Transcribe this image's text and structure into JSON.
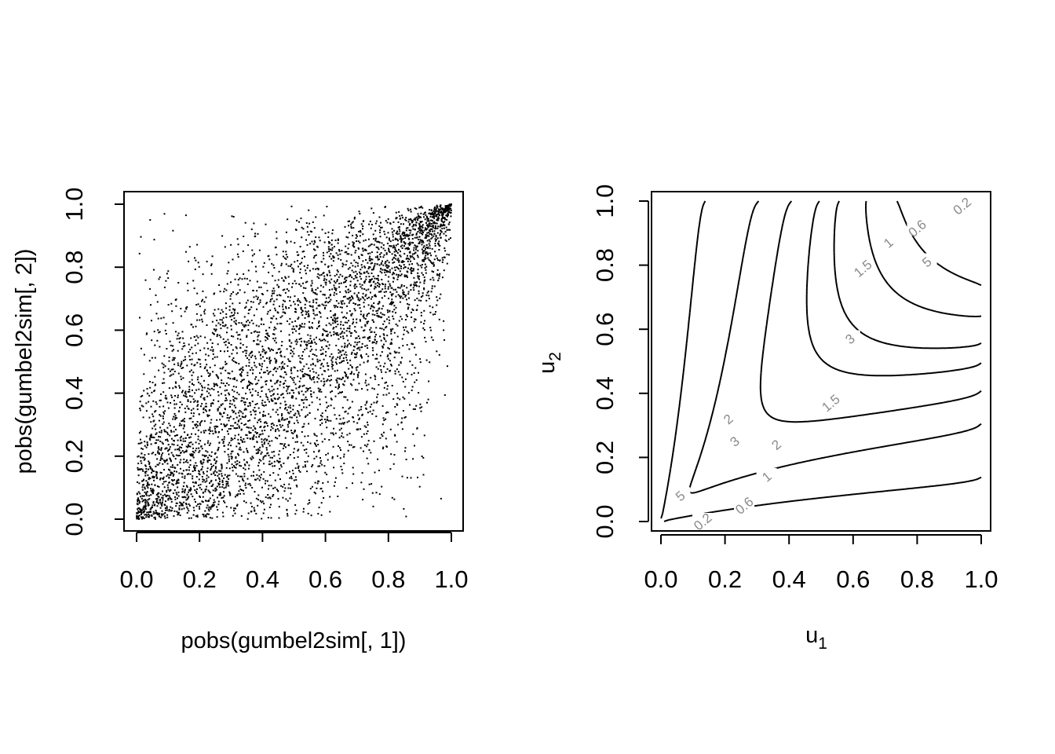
{
  "chart_data": [
    {
      "type": "scatter",
      "xlabel": "pobs(gumbel2sim[, 1])",
      "ylabel": "pobs(gumbel2sim[, 2])",
      "xlim": [
        0,
        1
      ],
      "ylim": [
        0,
        1
      ],
      "x_ticks": [
        "0.0",
        "0.2",
        "0.4",
        "0.6",
        "0.8",
        "1.0"
      ],
      "y_ticks": [
        "0.0",
        "0.2",
        "0.4",
        "0.6",
        "0.8",
        "1.0"
      ],
      "grid": false,
      "n_points": 5000,
      "dependence": "strong positive, concentrated along the diagonal with tails pinched at (0,0) and (1,1)",
      "sample_points": [
        [
          0.02,
          0.01
        ],
        [
          0.05,
          0.03
        ],
        [
          0.08,
          0.1
        ],
        [
          0.12,
          0.15
        ],
        [
          0.18,
          0.22
        ],
        [
          0.25,
          0.27
        ],
        [
          0.3,
          0.38
        ],
        [
          0.35,
          0.3
        ],
        [
          0.42,
          0.45
        ],
        [
          0.5,
          0.5
        ],
        [
          0.55,
          0.6
        ],
        [
          0.6,
          0.55
        ],
        [
          0.66,
          0.7
        ],
        [
          0.72,
          0.74
        ],
        [
          0.78,
          0.8
        ],
        [
          0.85,
          0.86
        ],
        [
          0.9,
          0.91
        ],
        [
          0.95,
          0.95
        ],
        [
          0.98,
          0.99
        ],
        [
          0.1,
          0.7
        ],
        [
          0.86,
          0.34
        ],
        [
          0.02,
          0.46
        ],
        [
          0.3,
          0.55
        ],
        [
          0.6,
          0.25
        ]
      ]
    },
    {
      "type": "contour",
      "xlabel": "u",
      "xlabel_sub": "1",
      "ylabel": "u",
      "ylabel_sub": "2",
      "xlim": [
        0,
        1
      ],
      "ylim": [
        0,
        1
      ],
      "x_ticks": [
        "0.0",
        "0.2",
        "0.4",
        "0.6",
        "0.8",
        "1.0"
      ],
      "y_ticks": [
        "0.0",
        "0.2",
        "0.4",
        "0.6",
        "0.8",
        "1.0"
      ],
      "grid": false,
      "levels": [
        "0.2",
        "0.6",
        "1",
        "1.5",
        "2",
        "3",
        "5"
      ],
      "upper_labels": [
        {
          "text": "0.2",
          "x": 0.94,
          "y": 0.985
        },
        {
          "text": "0.6",
          "x": 0.8,
          "y": 0.915
        },
        {
          "text": "1",
          "x": 0.71,
          "y": 0.87
        },
        {
          "text": "1.5",
          "x": 0.63,
          "y": 0.79
        },
        {
          "text": "2",
          "x": 0.21,
          "y": 0.32
        },
        {
          "text": "3",
          "x": 0.23,
          "y": 0.25
        },
        {
          "text": "5",
          "x": 0.06,
          "y": 0.08
        },
        {
          "text": "0.2",
          "x": 0.13,
          "y": 0.0
        },
        {
          "text": "0.6",
          "x": 0.26,
          "y": 0.05
        },
        {
          "text": "1",
          "x": 0.33,
          "y": 0.14
        },
        {
          "text": "2",
          "x": 0.36,
          "y": 0.24
        },
        {
          "text": "1.5",
          "x": 0.53,
          "y": 0.37
        },
        {
          "text": "3",
          "x": 0.59,
          "y": 0.57
        },
        {
          "text": "5",
          "x": 0.83,
          "y": 0.81
        }
      ]
    }
  ]
}
